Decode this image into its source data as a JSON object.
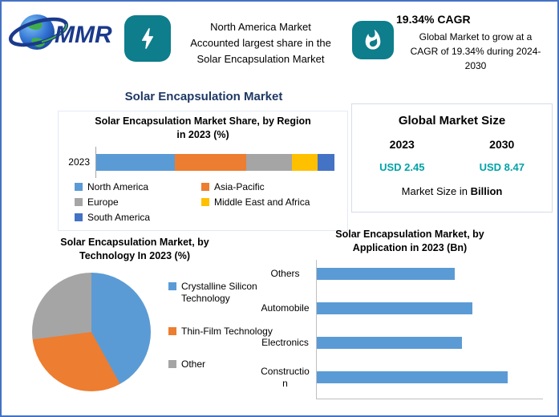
{
  "page": {
    "border_color": "#4472C4",
    "accent_teal": "#0E7D8C",
    "value_teal": "#00A3A8",
    "navy": "#1F3864"
  },
  "header": {
    "logo_text": "MMR",
    "icons": {
      "left": "bolt-icon",
      "right": "flame-icon"
    },
    "highlight_left_lines": [
      "North America Market",
      "Accounted largest share in the",
      "Solar Encapsulation Market"
    ],
    "cagr_title": "19.34% CAGR",
    "cagr_lines": [
      "Global Market to grow at a",
      "CAGR of 19.34% during 2024-",
      "2030"
    ]
  },
  "main_title": "Solar Encapsulation Market",
  "region_chart": {
    "title_line1": "Solar Encapsulation Market Share, by Region",
    "title_line2": "in 2023 (%)",
    "category": "2023"
  },
  "market_size": {
    "title": "Global Market Size",
    "year_start": "2023",
    "year_end": "2030",
    "value_start": "USD 2.45",
    "value_end": "USD 8.47",
    "note_prefix": "Market Size in",
    "note_bold": "Billion"
  },
  "technology_chart": {
    "title_line1": "Solar Encapsulation Market, by",
    "title_line2": "Technology In 2023 (%)"
  },
  "application_chart": {
    "title_line1": "Solar Encapsulation Market, by",
    "title_line2": "Application in 2023 (Bn)"
  },
  "chart_data": [
    {
      "id": "region_share",
      "type": "bar",
      "subtype": "horizontal-stacked",
      "title": "Solar Encapsulation Market Share, by Region in 2023 (%)",
      "categories": [
        "2023"
      ],
      "series": [
        {
          "name": "North America",
          "color": "#5B9BD5",
          "values": [
            33
          ]
        },
        {
          "name": "Asia-Pacific",
          "color": "#ED7D31",
          "values": [
            30
          ]
        },
        {
          "name": "Europe",
          "color": "#A5A5A5",
          "values": [
            19
          ]
        },
        {
          "name": "Middle East and Africa",
          "color": "#FFC000",
          "values": [
            11
          ]
        },
        {
          "name": "South America",
          "color": "#4472C4",
          "values": [
            7
          ]
        }
      ],
      "xlim": [
        0,
        100
      ],
      "legend_position": "bottom"
    },
    {
      "id": "technology_pie",
      "type": "pie",
      "title": "Solar Encapsulation Market, by Technology In 2023 (%)",
      "slices": [
        {
          "name": "Crystalline Silicon Technology",
          "color": "#5B9BD5",
          "value": 42
        },
        {
          "name": "Thin-Film Technology",
          "color": "#ED7D31",
          "value": 31
        },
        {
          "name": "Other",
          "color": "#A5A5A5",
          "value": 27
        }
      ],
      "legend_position": "right"
    },
    {
      "id": "application_bar",
      "type": "bar",
      "subtype": "horizontal",
      "title": "Solar Encapsulation Market, by Application in 2023 (Bn)",
      "categories": [
        "Others",
        "Automobile",
        "Electronics",
        "Construction"
      ],
      "values": [
        0.55,
        0.62,
        0.58,
        0.76
      ],
      "color": "#5B9BD5",
      "xlim": [
        0,
        0.9
      ],
      "ylabel": "",
      "xlabel": ""
    }
  ]
}
